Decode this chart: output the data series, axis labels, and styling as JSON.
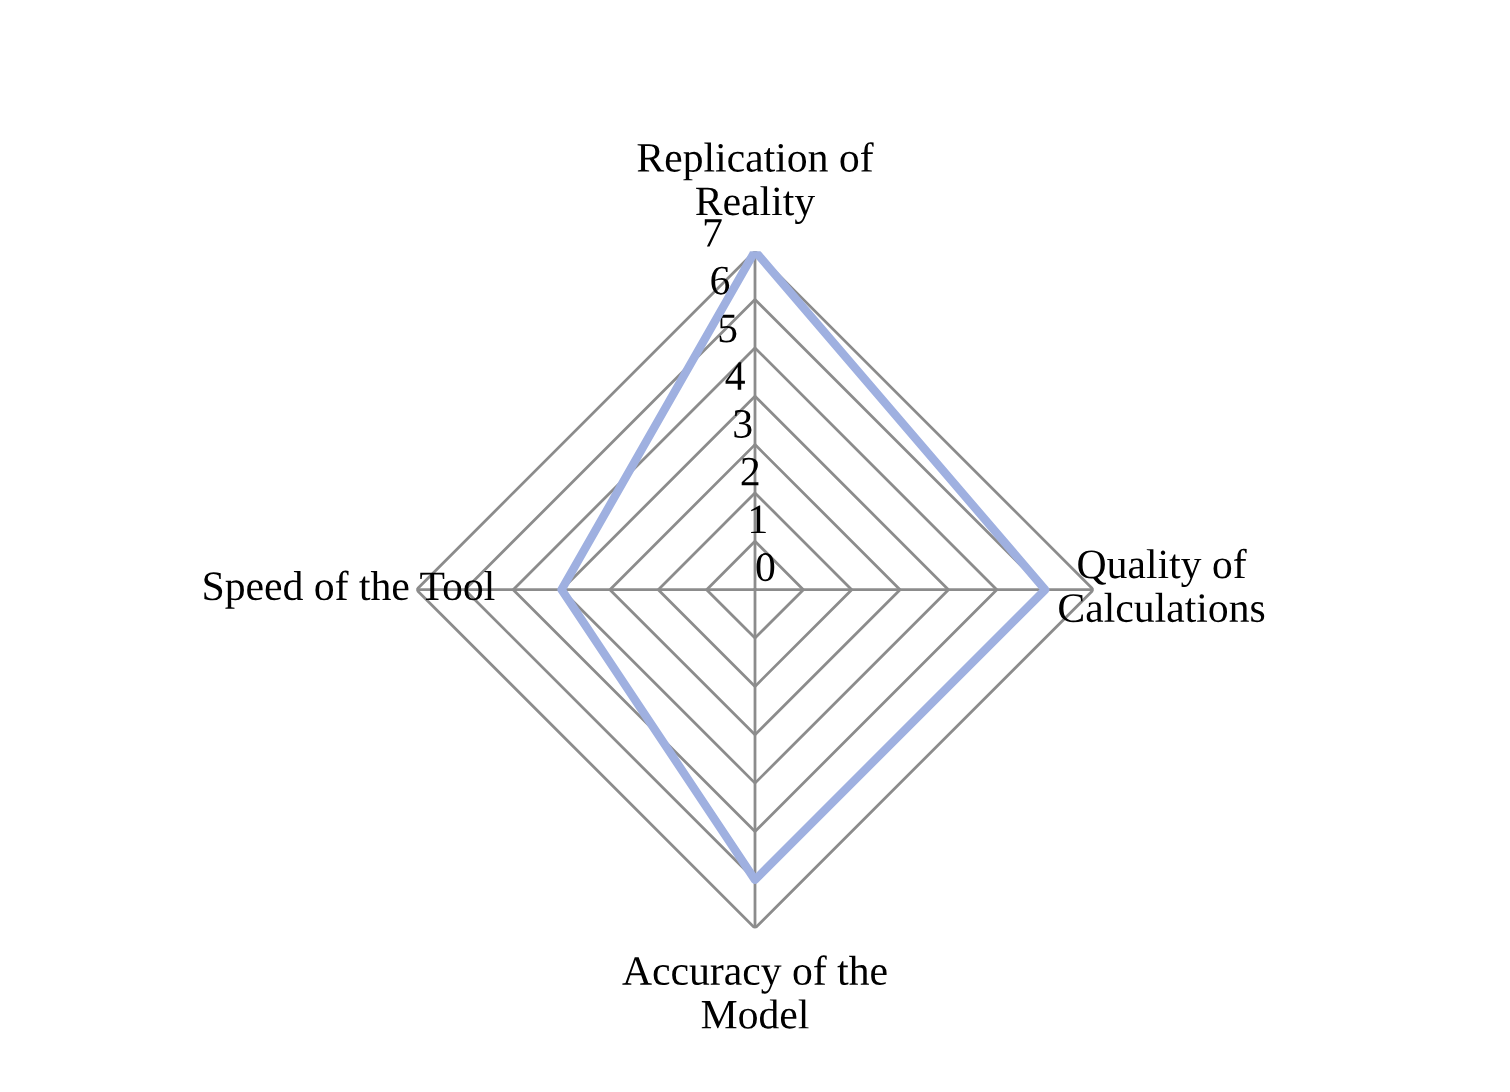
{
  "chart_data": {
    "type": "radar",
    "categories": [
      "Replication of\nReality",
      "Quality of\nCalculations",
      "Accuracy of the\nModel",
      "Speed of the Tool"
    ],
    "series": [
      {
        "color": "#9fb0e0",
        "values": [
          7,
          6,
          6,
          4
        ]
      }
    ],
    "ylim": [
      0,
      7
    ],
    "yticks": [
      0,
      1,
      2,
      3,
      4,
      5,
      6,
      7
    ],
    "grid": true,
    "marker": "none",
    "line_style": "solid"
  }
}
